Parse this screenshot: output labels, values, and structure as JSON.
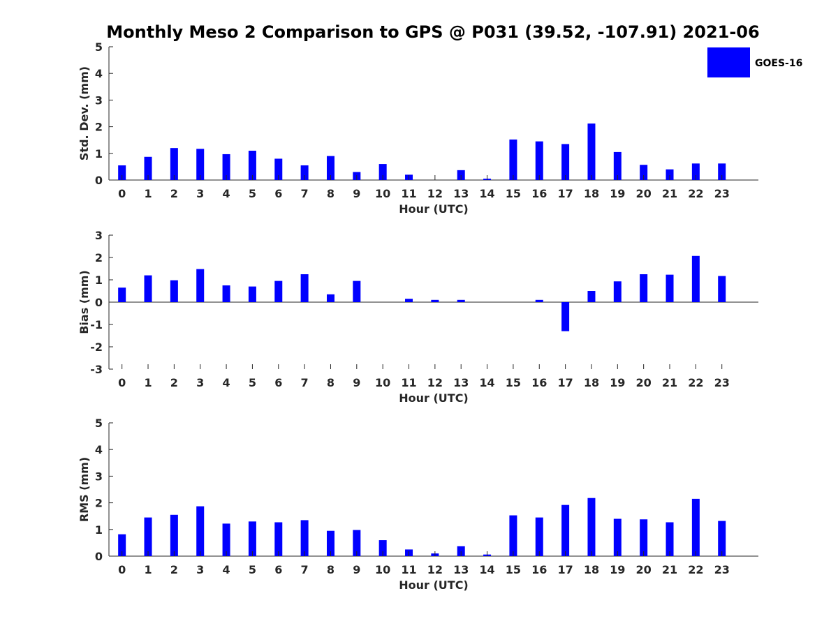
{
  "chart_data": {
    "title": "Monthly Meso 2 Comparison to GPS @ P031 (39.52, -107.91) 2021-06",
    "legend": {
      "label": "GOES-16",
      "placement": "top-right",
      "color": "#0000ff"
    },
    "panels": [
      {
        "type": "bar",
        "xlabel": "Hour (UTC)",
        "ylabel": "Std. Dev. (mm)",
        "ylim": [
          0,
          5
        ],
        "yticks": [
          "0",
          "1",
          "2",
          "3",
          "4",
          "5"
        ],
        "categories": [
          "0",
          "1",
          "2",
          "3",
          "4",
          "5",
          "6",
          "7",
          "8",
          "9",
          "10",
          "11",
          "12",
          "13",
          "14",
          "15",
          "16",
          "17",
          "18",
          "19",
          "20",
          "21",
          "22",
          "23"
        ],
        "series": [
          {
            "name": "GOES-16",
            "color": "#0000ff",
            "values": [
              0.55,
              0.87,
              1.2,
              1.17,
              0.97,
              1.1,
              0.8,
              0.55,
              0.9,
              0.3,
              0.6,
              0.2,
              0.0,
              0.37,
              0.05,
              1.52,
              1.45,
              1.35,
              2.12,
              1.05,
              0.57,
              0.4,
              0.62,
              0.62
            ]
          }
        ]
      },
      {
        "type": "bar",
        "xlabel": "Hour (UTC)",
        "ylabel": "Bias (mm)",
        "ylim": [
          -3,
          3
        ],
        "yticks": [
          "-3",
          "-2",
          "-1",
          "0",
          "1",
          "2",
          "3"
        ],
        "categories": [
          "0",
          "1",
          "2",
          "3",
          "4",
          "5",
          "6",
          "7",
          "8",
          "9",
          "10",
          "11",
          "12",
          "13",
          "14",
          "15",
          "16",
          "17",
          "18",
          "19",
          "20",
          "21",
          "22",
          "23"
        ],
        "series": [
          {
            "name": "GOES-16",
            "color": "#0000ff",
            "values": [
              0.65,
              1.2,
              0.98,
              1.48,
              0.75,
              0.7,
              0.95,
              1.25,
              0.35,
              0.95,
              0.0,
              0.15,
              0.1,
              0.1,
              0.0,
              0.0,
              0.1,
              -1.3,
              0.5,
              0.93,
              1.25,
              1.23,
              2.07,
              1.17
            ]
          }
        ]
      },
      {
        "type": "bar",
        "xlabel": "Hour (UTC)",
        "ylabel": "RMS (mm)",
        "ylim": [
          0,
          5
        ],
        "yticks": [
          "0",
          "1",
          "2",
          "3",
          "4",
          "5"
        ],
        "categories": [
          "0",
          "1",
          "2",
          "3",
          "4",
          "5",
          "6",
          "7",
          "8",
          "9",
          "10",
          "11",
          "12",
          "13",
          "14",
          "15",
          "16",
          "17",
          "18",
          "19",
          "20",
          "21",
          "22",
          "23"
        ],
        "series": [
          {
            "name": "GOES-16",
            "color": "#0000ff",
            "values": [
              0.82,
              1.45,
              1.55,
              1.87,
              1.22,
              1.3,
              1.27,
              1.35,
              0.95,
              0.98,
              0.6,
              0.25,
              0.1,
              0.37,
              0.06,
              1.53,
              1.45,
              1.92,
              2.18,
              1.4,
              1.38,
              1.27,
              2.15,
              1.32
            ]
          }
        ]
      }
    ]
  }
}
